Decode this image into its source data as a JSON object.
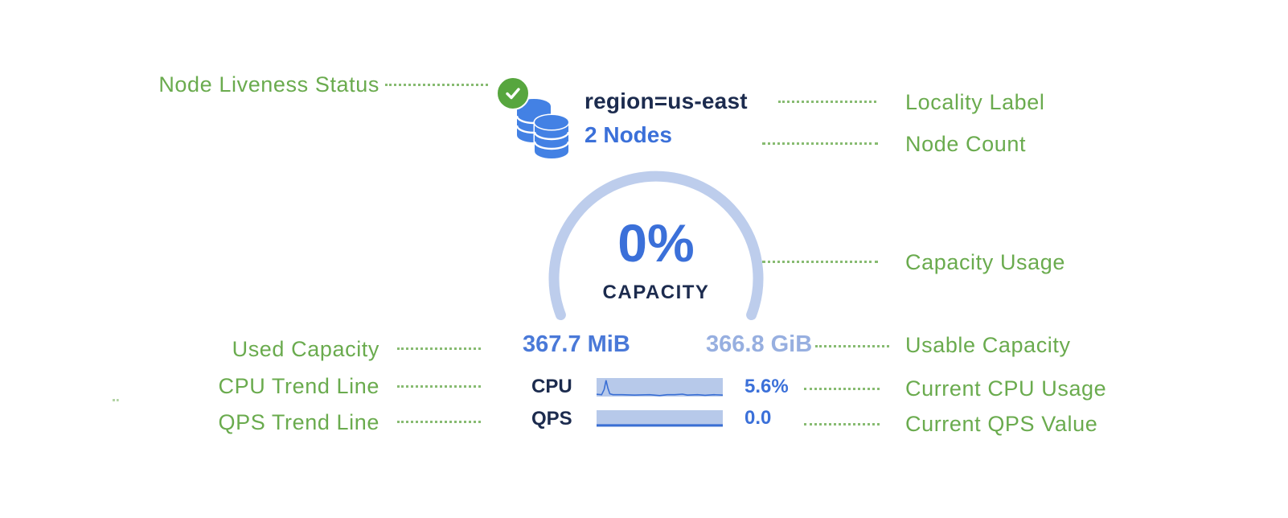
{
  "annotations": {
    "left": [
      {
        "label": "Node Liveness Status"
      },
      {
        "label": "Used Capacity"
      },
      {
        "label": "CPU Trend Line"
      },
      {
        "label": "QPS Trend Line"
      }
    ],
    "right": [
      {
        "label": "Locality Label"
      },
      {
        "label": "Node Count"
      },
      {
        "label": "Capacity Usage"
      },
      {
        "label": "Usable Capacity"
      },
      {
        "label": "Current CPU Usage"
      },
      {
        "label": "Current QPS Value"
      }
    ]
  },
  "widget": {
    "liveness_status": "live",
    "locality": "region=us-east",
    "node_count": "2 Nodes",
    "capacity_percent": "0%",
    "capacity_label": "CAPACITY",
    "used_capacity": "367.7 MiB",
    "usable_capacity": "366.8 GiB",
    "cpu": {
      "label": "CPU",
      "value": "5.6%",
      "trend": [
        [
          0,
          0.88
        ],
        [
          0.04,
          0.9
        ],
        [
          0.06,
          0.62
        ],
        [
          0.075,
          0.12
        ],
        [
          0.09,
          0.55
        ],
        [
          0.105,
          0.85
        ],
        [
          0.13,
          0.9
        ],
        [
          0.2,
          0.9
        ],
        [
          0.3,
          0.92
        ],
        [
          0.42,
          0.9
        ],
        [
          0.5,
          0.95
        ],
        [
          0.56,
          0.9
        ],
        [
          0.62,
          0.9
        ],
        [
          0.68,
          0.87
        ],
        [
          0.72,
          0.92
        ],
        [
          0.8,
          0.9
        ],
        [
          0.86,
          0.93
        ],
        [
          0.93,
          0.9
        ],
        [
          1,
          0.92
        ]
      ]
    },
    "qps": {
      "label": "QPS",
      "value": "0.0",
      "trend": [
        [
          0,
          0.89
        ],
        [
          1,
          0.89
        ]
      ]
    }
  },
  "icons": {
    "liveness": "check-circle-icon",
    "nodes": "database-stack-icon"
  },
  "colors": {
    "annotation_green": "#6aab4e",
    "check_green": "#57a63e",
    "db_blue": "#4381e4",
    "navy_text": "#1c2b4e",
    "royal_blue": "#3b70d9",
    "used_blue": "#4a79d8",
    "usable_blue": "#97afe0",
    "arc_blue": "#bdcdec",
    "spark_bg": "#b7c9ea",
    "spark_line": "#3a6fd4"
  }
}
